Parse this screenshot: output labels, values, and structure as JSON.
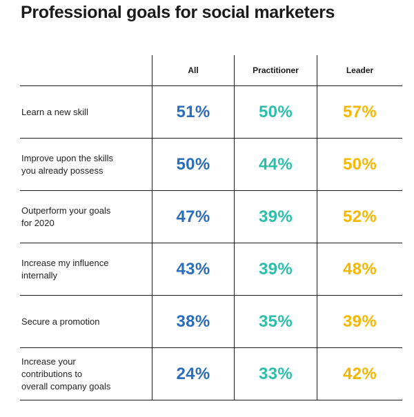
{
  "title": "Professional goals for social marketers",
  "colors": {
    "all": "#2a6ebb",
    "practitioner": "#2bbfa8",
    "leader": "#f5b800"
  },
  "chart_data": {
    "type": "table",
    "title": "Professional goals for social marketers",
    "columns": [
      "All",
      "Practitioner",
      "Leader"
    ],
    "rows": [
      {
        "label": "Learn a new skill",
        "lines": [
          "Learn a new skill"
        ],
        "values": [
          "51%",
          "50%",
          "57%"
        ]
      },
      {
        "label": "Improve upon the skills you already possess",
        "lines": [
          "Improve upon the skills",
          "you already possess"
        ],
        "values": [
          "50%",
          "44%",
          "50%"
        ]
      },
      {
        "label": "Outperform your goals for 2020",
        "lines": [
          "Outperform your goals",
          "for 2020"
        ],
        "values": [
          "47%",
          "39%",
          "52%"
        ]
      },
      {
        "label": "Increase my influence internally",
        "lines": [
          "Increase my influence",
          "internally"
        ],
        "values": [
          "43%",
          "39%",
          "48%"
        ]
      },
      {
        "label": "Secure a promotion",
        "lines": [
          "Secure a promotion"
        ],
        "values": [
          "38%",
          "35%",
          "39%"
        ]
      },
      {
        "label": "Increase your contributions to overall company goals",
        "lines": [
          "Increase your",
          "contributions to",
          "overall company goals"
        ],
        "values": [
          "24%",
          "33%",
          "42%"
        ]
      }
    ]
  }
}
